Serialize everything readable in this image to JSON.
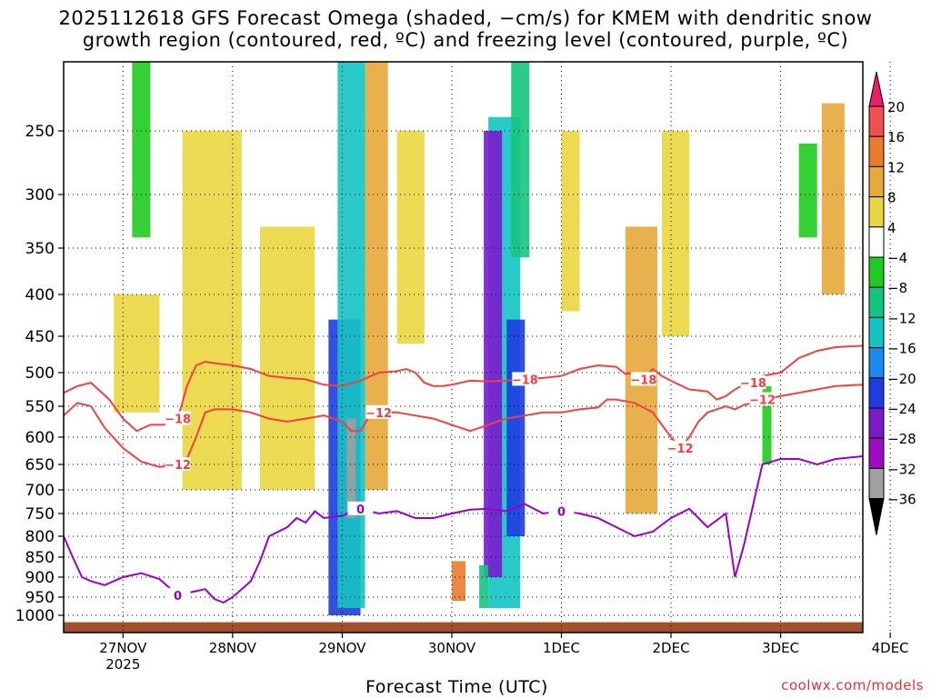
{
  "chart_data": {
    "type": "heatmap",
    "title": "2025112618 GFS Forecast Omega (shaded, −cm/s) for KMEM with dendritic snow",
    "title_line2": "growth region (contoured, red, ºC) and freezing level (contoured, purple, ºC)",
    "xlabel": "Forecast Time (UTC)",
    "ylabel": "",
    "credit": "coolwx.com/models",
    "x_ticks": [
      "27NOV",
      "28NOV",
      "29NOV",
      "30NOV",
      "1DEC",
      "2DEC",
      "3DEC",
      "4DEC"
    ],
    "x_year": "2025",
    "xlim_hours": [
      -13,
      162
    ],
    "y_ticks": [
      "250",
      "300",
      "350",
      "400",
      "450",
      "500",
      "550",
      "600",
      "650",
      "700",
      "750",
      "800",
      "850",
      "900",
      "950",
      "1000"
    ],
    "y_levels_hpa": [
      250,
      300,
      350,
      400,
      450,
      500,
      550,
      600,
      650,
      700,
      750,
      800,
      850,
      900,
      950,
      1000
    ],
    "ylim_hpa": [
      200,
      1020
    ],
    "colorbar": {
      "labels": [
        "20",
        "16",
        "12",
        "8",
        "4",
        "−4",
        "−8",
        "−12",
        "−16",
        "−20",
        "−24",
        "−28",
        "−32",
        "−36"
      ],
      "colors": [
        "#ee1d6a",
        "#f05050",
        "#ec7a2c",
        "#e6a93a",
        "#e9d63f",
        "#ffffff",
        "#1fcb1f",
        "#15c47e",
        "#14c4c4",
        "#1a8cf0",
        "#1f3ce0",
        "#7a1acc",
        "#a00ac0",
        "#a0a0a0",
        "#000000"
      ]
    },
    "contours": {
      "dgz_minus18": {
        "label": "−18",
        "color": "#f04040",
        "x_hours": [
          -13,
          -10,
          -7,
          -3,
          0,
          3,
          6,
          9,
          12,
          14,
          16,
          18,
          20,
          24,
          28,
          32,
          36,
          40,
          44,
          48,
          52,
          56,
          60,
          62,
          64,
          66,
          68,
          70,
          72,
          76,
          80,
          84,
          88,
          92,
          96,
          100,
          104,
          108,
          110,
          112,
          114,
          116,
          118,
          120,
          124,
          128,
          130,
          132,
          134,
          136,
          138,
          140,
          144,
          148,
          152,
          156,
          162
        ],
        "p_hpa": [
          530,
          520,
          515,
          540,
          570,
          590,
          580,
          580,
          570,
          520,
          490,
          485,
          487,
          490,
          495,
          505,
          508,
          510,
          518,
          520,
          512,
          500,
          498,
          495,
          500,
          515,
          520,
          520,
          518,
          512,
          513,
          512,
          510,
          508,
          505,
          495,
          490,
          492,
          502,
          500,
          510,
          495,
          505,
          512,
          525,
          528,
          540,
          535,
          525,
          518,
          515,
          505,
          500,
          480,
          470,
          465,
          463
        ]
      },
      "dgz_minus12": {
        "label": "−12",
        "color": "#f04040",
        "x_hours": [
          -13,
          -10,
          -7,
          -4,
          0,
          4,
          8,
          12,
          14,
          16,
          18,
          20,
          24,
          28,
          32,
          36,
          40,
          44,
          48,
          50,
          52,
          54,
          56,
          60,
          64,
          68,
          72,
          76,
          80,
          84,
          88,
          92,
          96,
          100,
          104,
          106,
          108,
          112,
          116,
          118,
          120,
          122,
          124,
          126,
          128,
          130,
          132,
          134,
          136,
          138,
          140,
          144,
          148,
          152,
          156,
          162
        ],
        "p_hpa": [
          565,
          545,
          550,
          585,
          620,
          645,
          655,
          650,
          640,
          600,
          560,
          555,
          555,
          560,
          570,
          575,
          570,
          565,
          575,
          590,
          590,
          565,
          560,
          560,
          565,
          570,
          580,
          590,
          580,
          570,
          565,
          560,
          560,
          555,
          552,
          540,
          540,
          545,
          560,
          580,
          600,
          620,
          600,
          575,
          560,
          555,
          550,
          555,
          548,
          545,
          540,
          535,
          530,
          525,
          520,
          518
        ]
      },
      "freezing_level": {
        "label": "0",
        "color": "#9a00c8",
        "x_hours": [
          -13,
          -11,
          -9,
          -7,
          -4,
          0,
          4,
          8,
          12,
          16,
          18,
          20,
          22,
          24,
          26,
          28,
          30,
          32,
          34,
          36,
          38,
          40,
          42,
          44,
          48,
          52,
          56,
          60,
          64,
          68,
          72,
          76,
          80,
          84,
          88,
          92,
          96,
          100,
          104,
          108,
          112,
          116,
          120,
          124,
          128,
          132,
          134,
          136,
          140,
          144,
          148,
          152,
          156,
          162
        ],
        "p_hpa": [
          800,
          850,
          900,
          910,
          920,
          900,
          890,
          905,
          945,
          935,
          930,
          955,
          965,
          950,
          930,
          910,
          860,
          800,
          790,
          780,
          760,
          770,
          745,
          760,
          755,
          740,
          750,
          745,
          760,
          760,
          750,
          742,
          740,
          745,
          730,
          750,
          745,
          750,
          760,
          780,
          800,
          790,
          760,
          740,
          780,
          750,
          900,
          820,
          650,
          640,
          640,
          650,
          640,
          635
        ]
      }
    },
    "shading_regions": [
      {
        "x_hours": [
          13,
          26
        ],
        "p_top": 250,
        "p_bottom": 700,
        "omega": 6
      },
      {
        "x_hours": [
          30,
          42
        ],
        "p_top": 330,
        "p_bottom": 700,
        "omega": 5
      },
      {
        "x_hours": [
          45,
          52
        ],
        "p_top": 430,
        "p_bottom": 1000,
        "omega": -22
      },
      {
        "x_hours": [
          47,
          53
        ],
        "p_top": 200,
        "p_bottom": 980,
        "omega": -14
      },
      {
        "x_hours": [
          49,
          51
        ],
        "p_top": 570,
        "p_bottom": 760,
        "omega": -36
      },
      {
        "x_hours": [
          53,
          58
        ],
        "p_top": 200,
        "p_bottom": 700,
        "omega": 10
      },
      {
        "x_hours": [
          80,
          87
        ],
        "p_top": 240,
        "p_bottom": 980,
        "omega": -16
      },
      {
        "x_hours": [
          79,
          83
        ],
        "p_top": 250,
        "p_bottom": 900,
        "omega": -28
      },
      {
        "x_hours": [
          84,
          88
        ],
        "p_top": 430,
        "p_bottom": 800,
        "omega": -24
      },
      {
        "x_hours": [
          85,
          89
        ],
        "p_top": 200,
        "p_bottom": 360,
        "omega": -10
      },
      {
        "x_hours": [
          72,
          75
        ],
        "p_top": 860,
        "p_bottom": 960,
        "omega": 12
      },
      {
        "x_hours": [
          78,
          80
        ],
        "p_top": 870,
        "p_bottom": 980,
        "omega": -10
      },
      {
        "x_hours": [
          110,
          117
        ],
        "p_top": 330,
        "p_bottom": 750,
        "omega": 9
      },
      {
        "x_hours": [
          118,
          124
        ],
        "p_top": 250,
        "p_bottom": 450,
        "omega": 5
      },
      {
        "x_hours": [
          153,
          158
        ],
        "p_top": 230,
        "p_bottom": 400,
        "omega": 9
      },
      {
        "x_hours": [
          -2,
          8
        ],
        "p_top": 400,
        "p_bottom": 560,
        "omega": 7
      },
      {
        "x_hours": [
          60,
          66
        ],
        "p_top": 250,
        "p_bottom": 460,
        "omega": 5
      },
      {
        "x_hours": [
          96,
          100
        ],
        "p_top": 250,
        "p_bottom": 420,
        "omega": 5
      },
      {
        "x_hours": [
          2,
          6
        ],
        "p_top": 200,
        "p_bottom": 340,
        "omega": -8
      },
      {
        "x_hours": [
          148,
          152
        ],
        "p_top": 260,
        "p_bottom": 340,
        "omega": -8
      },
      {
        "x_hours": [
          140,
          142
        ],
        "p_top": 520,
        "p_bottom": 650,
        "omega": -8
      }
    ],
    "surface_color": "#a0522d"
  }
}
